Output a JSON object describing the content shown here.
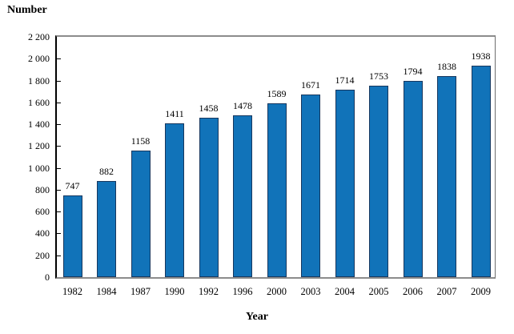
{
  "chart_data": {
    "type": "bar",
    "title": "Number",
    "xlabel": "Year",
    "categories": [
      "1982",
      "1984",
      "1987",
      "1990",
      "1992",
      "1996",
      "2000",
      "2003",
      "2004",
      "2005",
      "2006",
      "2007",
      "2009"
    ],
    "values": [
      747,
      882,
      1158,
      1411,
      1458,
      1478,
      1589,
      1671,
      1714,
      1753,
      1794,
      1838,
      1938
    ],
    "bar_value_labels": [
      "747",
      "882",
      "1158",
      "1411",
      "1458",
      "1478",
      "1589",
      "1671",
      "1714",
      "1753",
      "1794",
      "1838",
      "1938"
    ],
    "ylim": [
      0,
      2200
    ],
    "ytick_step": 200,
    "ytick_labels": [
      "0",
      "200",
      "400",
      "600",
      "800",
      "1 000",
      "1 200",
      "1 400",
      "1 600",
      "1 800",
      "2 000",
      "2 200"
    ],
    "grid": false,
    "legend": "none",
    "colors": {
      "bar_fill": "#1173B9",
      "bar_border": "#17375E",
      "y_axis": "#000000",
      "frame": "#8C8C8C",
      "text": "#000000",
      "background": "#FFFFFF"
    }
  }
}
